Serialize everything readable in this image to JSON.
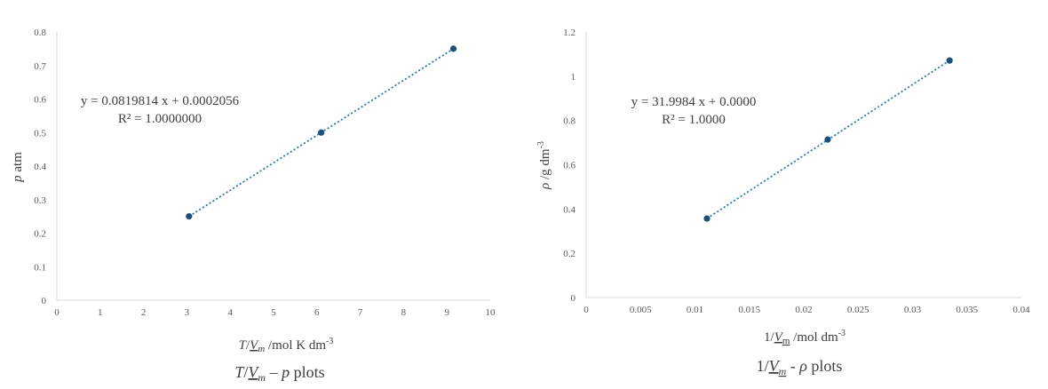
{
  "chart_data": [
    {
      "type": "scatter",
      "x": [
        3.05,
        6.1,
        9.15
      ],
      "y": [
        0.25,
        0.5,
        0.75
      ],
      "xlim": [
        0,
        10
      ],
      "ylim": [
        0,
        0.8
      ],
      "x_ticks": [
        "0",
        "1",
        "2",
        "3",
        "4",
        "5",
        "6",
        "7",
        "8",
        "9",
        "10"
      ],
      "y_ticks": [
        "0",
        "0.1",
        "0.2",
        "0.3",
        "0.4",
        "0.5",
        "0.6",
        "0.7",
        "0.8"
      ],
      "xlabel": {
        "a": "T",
        "b": "/",
        "c": "V",
        "d": "m",
        "e": " /mol K dm",
        "f": "-3"
      },
      "ylabel": {
        "a": "p",
        "b": " atm"
      },
      "caption": {
        "a": "T",
        "b": "/",
        "c": "V",
        "d": "m",
        "e": " – ",
        "f": "p",
        "g": " plots"
      },
      "trendline": {
        "equation": "y = 0.0819814 x + 0.0002056",
        "r2": "R² = 1.0000000",
        "style": "dotted"
      },
      "marker_color": "#1f4e79",
      "trendline_color": "#2e75b6",
      "grid": false
    },
    {
      "type": "scatter",
      "x": [
        0.0111,
        0.0222,
        0.0334
      ],
      "y": [
        0.357,
        0.714,
        1.071
      ],
      "xlim": [
        0,
        0.04
      ],
      "ylim": [
        0,
        1.2
      ],
      "x_ticks": [
        "0",
        "0.005",
        "0.01",
        "0.015",
        "0.02",
        "0.025",
        "0.03",
        "0.035",
        "0.04"
      ],
      "y_ticks": [
        "0",
        "0.2",
        "0.4",
        "0.6",
        "0.8",
        "1",
        "1.2"
      ],
      "xlabel": {
        "a": "1/",
        "b": "V",
        "c": "m",
        "d": " /mol dm",
        "e": "-3"
      },
      "ylabel": {
        "a": "ρ",
        "b": " /g dm",
        "c": "-3"
      },
      "caption": {
        "a": "1/",
        "b": "V",
        "c": "m",
        "d": " - ",
        "e": "ρ",
        "f": "  plots"
      },
      "trendline": {
        "equation": "y = 31.9984 x + 0.0000",
        "r2": "R² = 1.0000",
        "style": "dotted"
      },
      "marker_color": "#1f4e79",
      "trendline_color": "#2e75b6",
      "grid": false
    }
  ]
}
